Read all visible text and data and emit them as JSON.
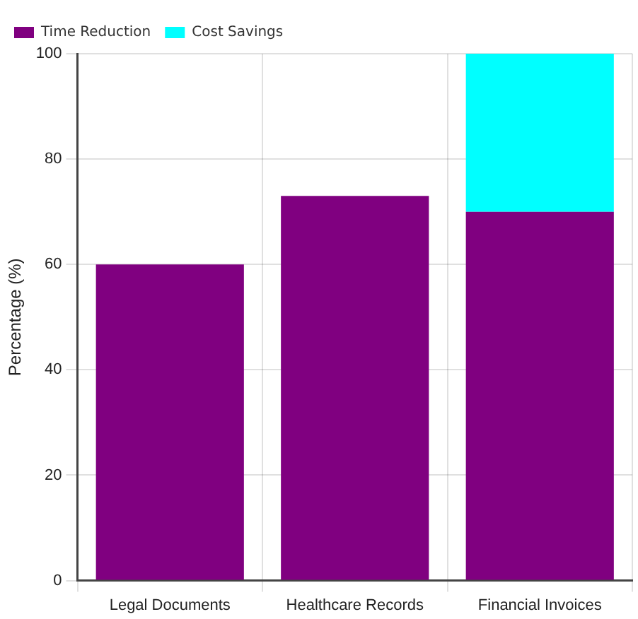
{
  "chart_data": {
    "type": "bar",
    "ylabel": "Percentage (%)",
    "categories": [
      "Legal Documents",
      "Healthcare Records",
      "Financial Invoices"
    ],
    "series": [
      {
        "name": "Time Reduction",
        "color": "#800080",
        "values": [
          60,
          73,
          70
        ]
      },
      {
        "name": "Cost Savings",
        "color": "#00ffff",
        "values": [
          null,
          null,
          30
        ]
      }
    ],
    "stacked": true,
    "ylim": [
      0,
      100
    ],
    "yticks": [
      0,
      20,
      40,
      60,
      80,
      100
    ],
    "grid": true,
    "legend": "top left"
  }
}
